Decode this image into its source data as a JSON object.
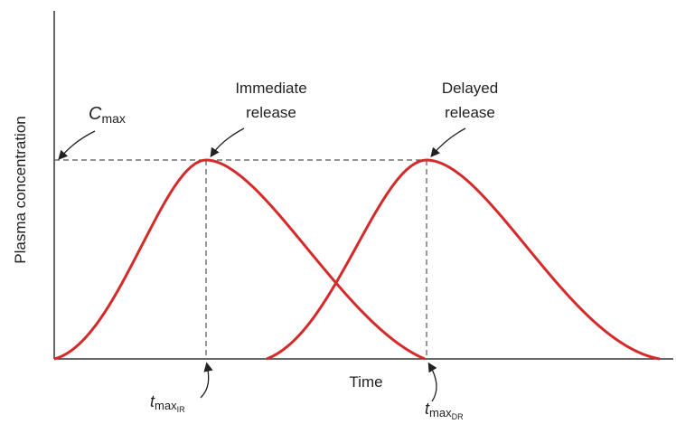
{
  "axes": {
    "y_label": "Plasma concentration",
    "x_label": "Time"
  },
  "annotations": {
    "cmax": {
      "symbol": "C",
      "subscript": "max"
    },
    "immediate": [
      "Immediate",
      "release"
    ],
    "delayed": [
      "Delayed",
      "release"
    ],
    "tmax_ir": {
      "symbol": "t",
      "subscript": "max",
      "sub_subscript": "IR"
    },
    "tmax_dr": {
      "symbol": "t",
      "subscript": "max",
      "sub_subscript": "DR"
    }
  }
}
